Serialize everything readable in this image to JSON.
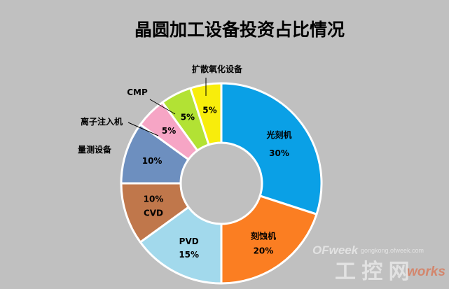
{
  "chart_data": {
    "type": "pie",
    "variant": "donut",
    "title": "晶圆加工设备投资占比情况",
    "slices": [
      {
        "name": "光刻机",
        "value": 30,
        "label": "30%",
        "color": "#0aa0e6"
      },
      {
        "name": "刻蚀机",
        "value": 20,
        "label": "20%",
        "color": "#fb7e22"
      },
      {
        "name": "PVD",
        "value": 15,
        "label": "15%",
        "color": "#a2d9ec"
      },
      {
        "name": "CVD",
        "value": 10,
        "label": "10%",
        "color": "#c0774b"
      },
      {
        "name": "量测设备",
        "value": 10,
        "label": "10%",
        "color": "#6d8fbf"
      },
      {
        "name": "离子注入机",
        "value": 5,
        "label": "5%",
        "color": "#f6a5c5"
      },
      {
        "name": "CMP",
        "value": 5,
        "label": "5%",
        "color": "#b2e234"
      },
      {
        "name": "扩散氧化设备",
        "value": 5,
        "label": "5%",
        "color": "#f8ed0b"
      }
    ]
  },
  "watermark": {
    "brand": "OFweek",
    "url": "gongkong.ofweek.com",
    "cn_text": "工 控 网",
    "logo_text": "works",
    "logo_accent": "#e3582a"
  }
}
